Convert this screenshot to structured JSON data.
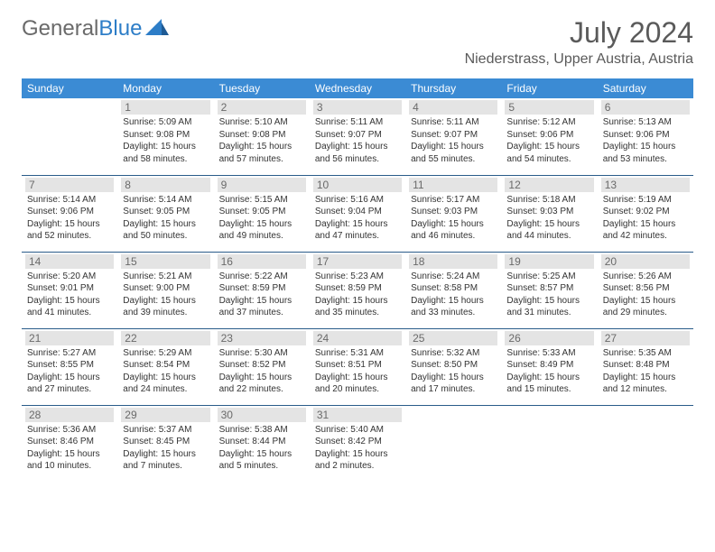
{
  "logo": {
    "part1": "General",
    "part2": "Blue"
  },
  "title": "July 2024",
  "subtitle": "Niederstrass, Upper Austria, Austria",
  "colors": {
    "header_bg": "#3b8bd4",
    "header_text": "#ffffff",
    "daynum_bg": "#e4e4e4",
    "daynum_text": "#6a6a6a",
    "divider": "#2a5c8a",
    "title_color": "#5a5a5a",
    "logo_gray": "#6a6a6a",
    "logo_blue": "#2d7dc7",
    "body_text": "#333333",
    "background": "#ffffff"
  },
  "typography": {
    "title_fontsize": 32,
    "subtitle_fontsize": 16,
    "logo_fontsize": 24,
    "day_header_fontsize": 12,
    "daynum_fontsize": 12,
    "dayinfo_fontsize": 10
  },
  "day_headers": [
    "Sunday",
    "Monday",
    "Tuesday",
    "Wednesday",
    "Thursday",
    "Friday",
    "Saturday"
  ],
  "weeks": [
    [
      null,
      {
        "n": "1",
        "sr": "5:09 AM",
        "ss": "9:08 PM",
        "dl": "15 hours and 58 minutes."
      },
      {
        "n": "2",
        "sr": "5:10 AM",
        "ss": "9:08 PM",
        "dl": "15 hours and 57 minutes."
      },
      {
        "n": "3",
        "sr": "5:11 AM",
        "ss": "9:07 PM",
        "dl": "15 hours and 56 minutes."
      },
      {
        "n": "4",
        "sr": "5:11 AM",
        "ss": "9:07 PM",
        "dl": "15 hours and 55 minutes."
      },
      {
        "n": "5",
        "sr": "5:12 AM",
        "ss": "9:06 PM",
        "dl": "15 hours and 54 minutes."
      },
      {
        "n": "6",
        "sr": "5:13 AM",
        "ss": "9:06 PM",
        "dl": "15 hours and 53 minutes."
      }
    ],
    [
      {
        "n": "7",
        "sr": "5:14 AM",
        "ss": "9:06 PM",
        "dl": "15 hours and 52 minutes."
      },
      {
        "n": "8",
        "sr": "5:14 AM",
        "ss": "9:05 PM",
        "dl": "15 hours and 50 minutes."
      },
      {
        "n": "9",
        "sr": "5:15 AM",
        "ss": "9:05 PM",
        "dl": "15 hours and 49 minutes."
      },
      {
        "n": "10",
        "sr": "5:16 AM",
        "ss": "9:04 PM",
        "dl": "15 hours and 47 minutes."
      },
      {
        "n": "11",
        "sr": "5:17 AM",
        "ss": "9:03 PM",
        "dl": "15 hours and 46 minutes."
      },
      {
        "n": "12",
        "sr": "5:18 AM",
        "ss": "9:03 PM",
        "dl": "15 hours and 44 minutes."
      },
      {
        "n": "13",
        "sr": "5:19 AM",
        "ss": "9:02 PM",
        "dl": "15 hours and 42 minutes."
      }
    ],
    [
      {
        "n": "14",
        "sr": "5:20 AM",
        "ss": "9:01 PM",
        "dl": "15 hours and 41 minutes."
      },
      {
        "n": "15",
        "sr": "5:21 AM",
        "ss": "9:00 PM",
        "dl": "15 hours and 39 minutes."
      },
      {
        "n": "16",
        "sr": "5:22 AM",
        "ss": "8:59 PM",
        "dl": "15 hours and 37 minutes."
      },
      {
        "n": "17",
        "sr": "5:23 AM",
        "ss": "8:59 PM",
        "dl": "15 hours and 35 minutes."
      },
      {
        "n": "18",
        "sr": "5:24 AM",
        "ss": "8:58 PM",
        "dl": "15 hours and 33 minutes."
      },
      {
        "n": "19",
        "sr": "5:25 AM",
        "ss": "8:57 PM",
        "dl": "15 hours and 31 minutes."
      },
      {
        "n": "20",
        "sr": "5:26 AM",
        "ss": "8:56 PM",
        "dl": "15 hours and 29 minutes."
      }
    ],
    [
      {
        "n": "21",
        "sr": "5:27 AM",
        "ss": "8:55 PM",
        "dl": "15 hours and 27 minutes."
      },
      {
        "n": "22",
        "sr": "5:29 AM",
        "ss": "8:54 PM",
        "dl": "15 hours and 24 minutes."
      },
      {
        "n": "23",
        "sr": "5:30 AM",
        "ss": "8:52 PM",
        "dl": "15 hours and 22 minutes."
      },
      {
        "n": "24",
        "sr": "5:31 AM",
        "ss": "8:51 PM",
        "dl": "15 hours and 20 minutes."
      },
      {
        "n": "25",
        "sr": "5:32 AM",
        "ss": "8:50 PM",
        "dl": "15 hours and 17 minutes."
      },
      {
        "n": "26",
        "sr": "5:33 AM",
        "ss": "8:49 PM",
        "dl": "15 hours and 15 minutes."
      },
      {
        "n": "27",
        "sr": "5:35 AM",
        "ss": "8:48 PM",
        "dl": "15 hours and 12 minutes."
      }
    ],
    [
      {
        "n": "28",
        "sr": "5:36 AM",
        "ss": "8:46 PM",
        "dl": "15 hours and 10 minutes."
      },
      {
        "n": "29",
        "sr": "5:37 AM",
        "ss": "8:45 PM",
        "dl": "15 hours and 7 minutes."
      },
      {
        "n": "30",
        "sr": "5:38 AM",
        "ss": "8:44 PM",
        "dl": "15 hours and 5 minutes."
      },
      {
        "n": "31",
        "sr": "5:40 AM",
        "ss": "8:42 PM",
        "dl": "15 hours and 2 minutes."
      },
      null,
      null,
      null
    ]
  ],
  "labels": {
    "sunrise": "Sunrise: ",
    "sunset": "Sunset: ",
    "daylight": "Daylight: "
  }
}
